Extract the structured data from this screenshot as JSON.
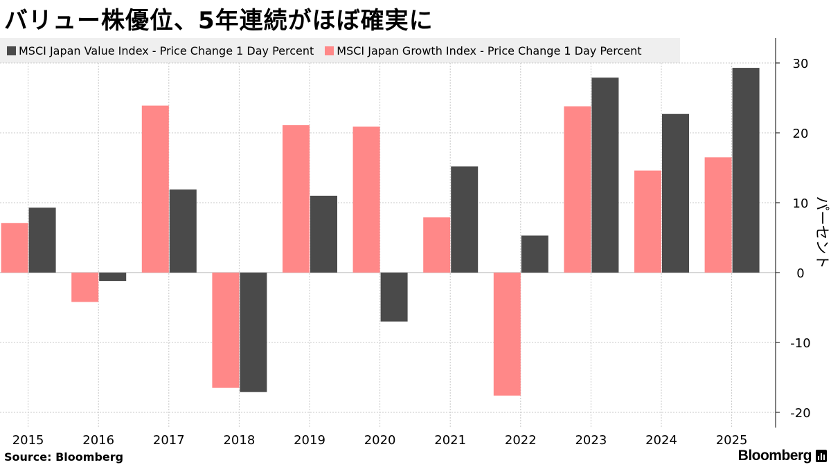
{
  "title": "バリュー株優位、5年連続がほぼ確実に",
  "source": "Source:  Bloomberg",
  "brand": "Bloomberg",
  "colors": {
    "value": "#4a4a4a",
    "growth": "#ff8888",
    "grid": "#c8c8c8",
    "legend_bg": "#efefef"
  },
  "chart_data": {
    "type": "bar",
    "categories": [
      "2015",
      "2016",
      "2017",
      "2018",
      "2019",
      "2020",
      "2021",
      "2022",
      "2023",
      "2024",
      "2025"
    ],
    "series": [
      {
        "name": "MSCI Japan Growth Index - Price Change 1 Day Percent",
        "values": [
          7.1,
          -4.2,
          23.9,
          -16.5,
          21.1,
          20.9,
          7.9,
          -17.6,
          23.8,
          14.6,
          16.5
        ]
      },
      {
        "name": "MSCI Japan Value Index - Price Change 1 Day Percent",
        "values": [
          9.3,
          -1.2,
          11.9,
          -17.1,
          11.0,
          -7.0,
          15.2,
          5.3,
          27.9,
          22.7,
          29.3
        ]
      }
    ],
    "legend_order": [
      "MSCI Japan Value Index - Price Change 1 Day Percent",
      "MSCI Japan Growth Index - Price Change 1 Day Percent"
    ],
    "ylabel": "パーセント",
    "ylim": [
      -22,
      34
    ],
    "yticks": [
      30,
      20,
      10,
      0,
      -10,
      -20
    ],
    "ytick_labels": [
      "30",
      "20",
      "10",
      "0",
      "-10",
      "-20"
    ],
    "yaxis_side": "right",
    "grid": true,
    "legend_position": "top-left"
  }
}
